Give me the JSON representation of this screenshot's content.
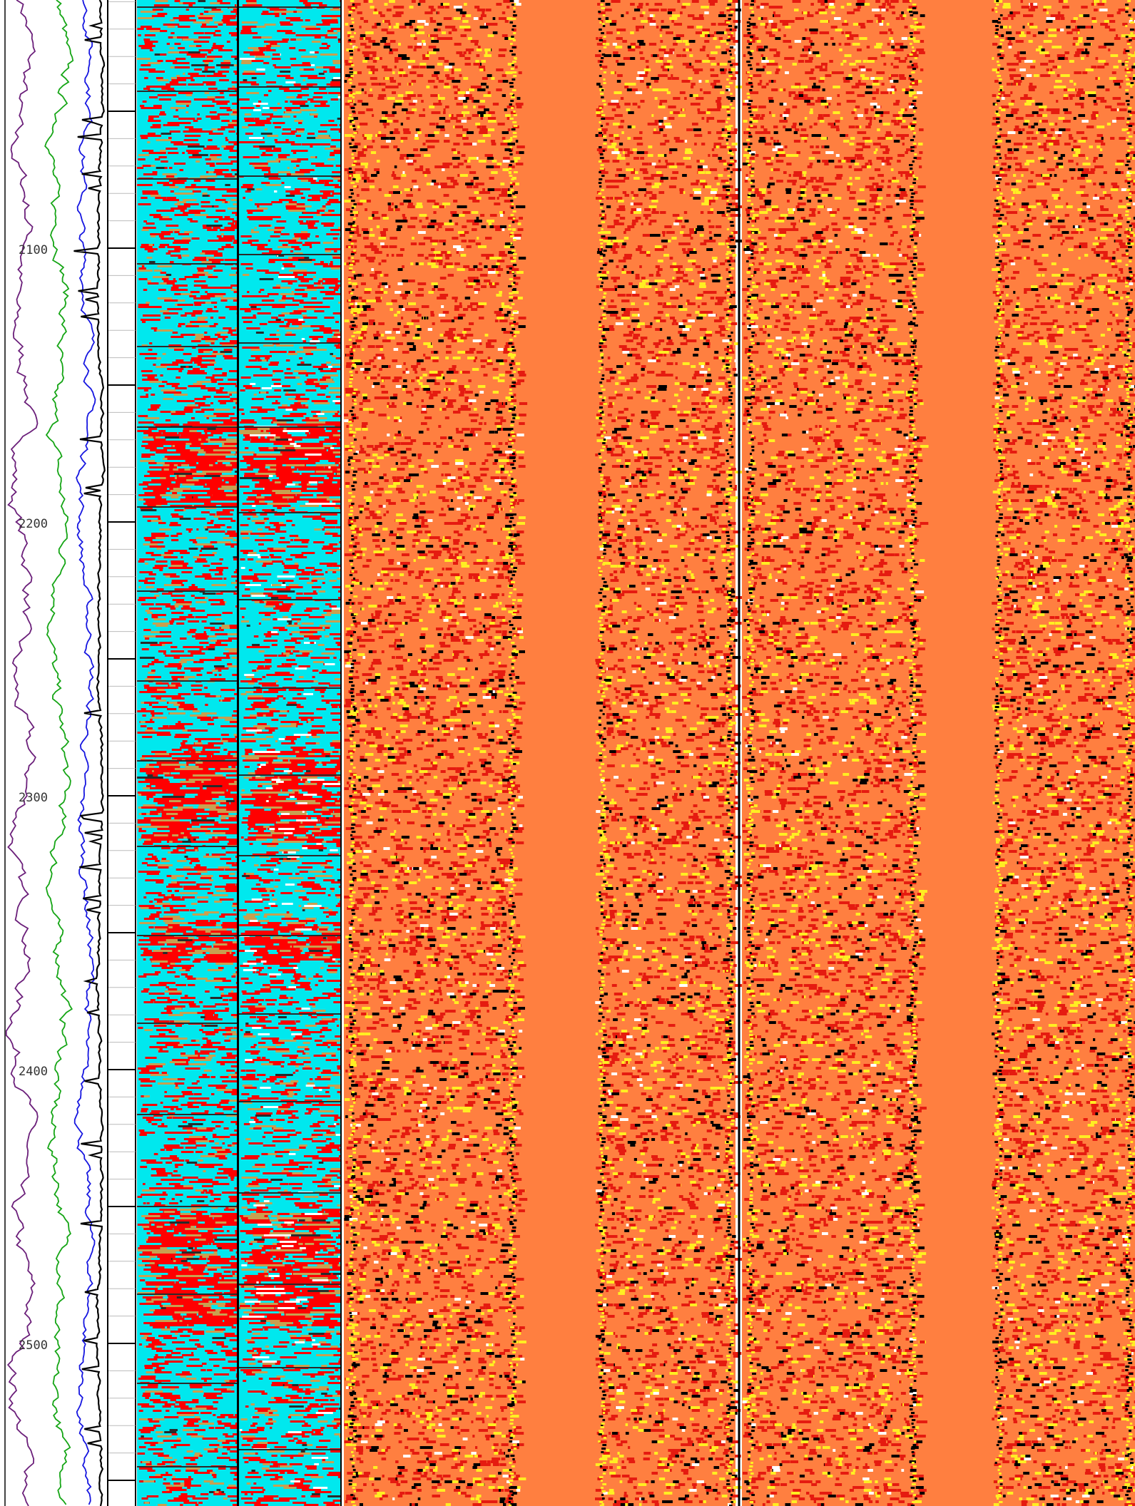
{
  "depth_axis": {
    "labels": [
      "2100",
      "2200",
      "2300",
      "2400",
      "2500"
    ],
    "visible_range_m": [
      1918,
      2550
    ]
  },
  "colors": {
    "background": "#ffffff",
    "curve_purple": "#6b1f7a",
    "curve_green": "#15a515",
    "curve_blue": "#1616e0",
    "curve_black": "#000000",
    "facies_background": "#00e8ee",
    "facies_red": "#ff0000",
    "facies_tan": "#c8a050",
    "facies_dark": "#2a2a2a",
    "image_background": "#ff7f40",
    "image_red": "#e51b10",
    "image_yellow": "#ffee22",
    "image_black": "#000000",
    "image_white": "#ffffff"
  },
  "tracks": [
    {
      "id": "gamma-curves",
      "kind": "multi-curve log",
      "curves": [
        "purple",
        "green",
        "blue",
        "black"
      ]
    },
    {
      "id": "depth",
      "kind": "depth scale"
    },
    {
      "id": "facies-left",
      "kind": "facies image"
    },
    {
      "id": "facies-right",
      "kind": "facies image"
    },
    {
      "id": "borehole-image-1",
      "kind": "borehole image",
      "pad_gap": true
    },
    {
      "id": "borehole-image-2",
      "kind": "borehole image",
      "pad_gap": true
    }
  ]
}
